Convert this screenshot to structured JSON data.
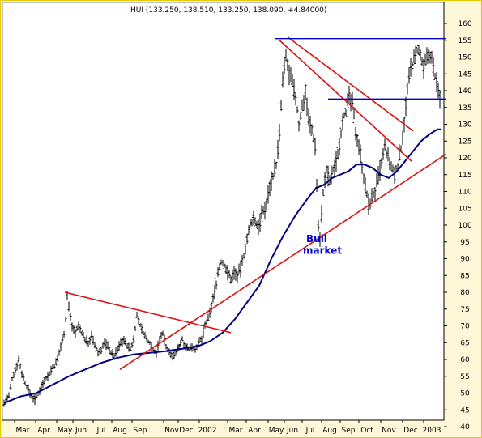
{
  "chart_data": {
    "type": "bar",
    "subtype": "ohlc-price",
    "title": "HUI (133.250, 138.510, 133.250, 138.090, +4.84000)",
    "ylim": [
      37,
      162
    ],
    "yticks": [
      40,
      45,
      50,
      55,
      60,
      65,
      70,
      75,
      80,
      85,
      90,
      95,
      100,
      105,
      110,
      115,
      120,
      125,
      130,
      135,
      140,
      145,
      150,
      155,
      160
    ],
    "x_labels": [
      "Mar",
      "Apr",
      "May",
      "Jun",
      "Jul",
      "Aug",
      "Sep",
      "Nov",
      "Dec",
      "2002",
      "Mar",
      "Apr",
      "May",
      "Jun",
      "Jul",
      "Aug",
      "Sep",
      "Oct",
      "Nov",
      "Dec",
      "2003"
    ],
    "grid": false,
    "colors": {
      "price": "#000000",
      "moving_average": "#000080",
      "trendline": "#dd1111",
      "horizontal_line": "#0000cc",
      "annotation": "#0000cc",
      "background": "#ffffff",
      "frame": "#e8c800"
    },
    "price_path": [
      [
        0,
        47
      ],
      [
        6,
        49
      ],
      [
        10,
        54
      ],
      [
        14,
        57
      ],
      [
        18,
        60
      ],
      [
        22,
        56
      ],
      [
        26,
        53
      ],
      [
        30,
        51
      ],
      [
        34,
        49
      ],
      [
        38,
        48
      ],
      [
        42,
        50
      ],
      [
        46,
        52
      ],
      [
        50,
        54
      ],
      [
        54,
        55
      ],
      [
        58,
        57
      ],
      [
        62,
        58
      ],
      [
        66,
        60
      ],
      [
        70,
        64
      ],
      [
        74,
        68
      ],
      [
        76,
        72
      ],
      [
        78,
        79
      ],
      [
        81,
        74
      ],
      [
        84,
        70
      ],
      [
        88,
        68
      ],
      [
        92,
        70
      ],
      [
        96,
        68
      ],
      [
        100,
        66
      ],
      [
        104,
        65
      ],
      [
        108,
        67
      ],
      [
        112,
        64
      ],
      [
        116,
        62
      ],
      [
        120,
        63
      ],
      [
        124,
        65
      ],
      [
        128,
        64
      ],
      [
        132,
        62
      ],
      [
        136,
        61
      ],
      [
        140,
        63
      ],
      [
        144,
        65
      ],
      [
        148,
        66
      ],
      [
        152,
        64
      ],
      [
        156,
        63
      ],
      [
        160,
        66
      ],
      [
        164,
        73
      ],
      [
        168,
        70
      ],
      [
        172,
        68
      ],
      [
        176,
        66
      ],
      [
        180,
        65
      ],
      [
        184,
        63
      ],
      [
        188,
        62
      ],
      [
        192,
        66
      ],
      [
        196,
        68
      ],
      [
        200,
        64
      ],
      [
        204,
        62
      ],
      [
        208,
        61
      ],
      [
        212,
        62
      ],
      [
        216,
        64
      ],
      [
        220,
        66
      ],
      [
        224,
        64
      ],
      [
        228,
        63
      ],
      [
        232,
        64
      ],
      [
        236,
        63
      ],
      [
        240,
        65
      ],
      [
        244,
        66
      ],
      [
        248,
        70
      ],
      [
        252,
        72
      ],
      [
        256,
        76
      ],
      [
        260,
        80
      ],
      [
        264,
        86
      ],
      [
        268,
        89
      ],
      [
        272,
        88
      ],
      [
        276,
        86
      ],
      [
        280,
        84
      ],
      [
        284,
        86
      ],
      [
        288,
        85
      ],
      [
        292,
        87
      ],
      [
        296,
        91
      ],
      [
        300,
        96
      ],
      [
        304,
        100
      ],
      [
        308,
        102
      ],
      [
        312,
        100
      ],
      [
        316,
        101
      ],
      [
        320,
        104
      ],
      [
        324,
        106
      ],
      [
        328,
        112
      ],
      [
        332,
        115
      ],
      [
        336,
        118
      ],
      [
        340,
        127
      ],
      [
        344,
        143
      ],
      [
        348,
        150
      ],
      [
        352,
        145
      ],
      [
        356,
        142
      ],
      [
        360,
        138
      ],
      [
        364,
        130
      ],
      [
        368,
        135
      ],
      [
        372,
        140
      ],
      [
        376,
        132
      ],
      [
        380,
        128
      ],
      [
        384,
        124
      ],
      [
        388,
        100
      ],
      [
        390,
        96
      ],
      [
        394,
        110
      ],
      [
        398,
        116
      ],
      [
        402,
        113
      ],
      [
        406,
        116
      ],
      [
        410,
        119
      ],
      [
        414,
        124
      ],
      [
        418,
        132
      ],
      [
        422,
        134
      ],
      [
        426,
        138
      ],
      [
        430,
        136
      ],
      [
        434,
        128
      ],
      [
        438,
        124
      ],
      [
        442,
        118
      ],
      [
        446,
        111
      ],
      [
        450,
        106
      ],
      [
        454,
        108
      ],
      [
        458,
        110
      ],
      [
        462,
        114
      ],
      [
        466,
        118
      ],
      [
        470,
        123
      ],
      [
        474,
        120
      ],
      [
        478,
        117
      ],
      [
        482,
        115
      ],
      [
        486,
        118
      ],
      [
        490,
        123
      ],
      [
        494,
        131
      ],
      [
        498,
        140
      ],
      [
        502,
        147
      ],
      [
        506,
        149
      ],
      [
        510,
        152
      ],
      [
        514,
        150
      ],
      [
        518,
        146
      ],
      [
        522,
        150
      ],
      [
        526,
        151
      ],
      [
        530,
        147
      ],
      [
        534,
        142
      ],
      [
        538,
        138
      ]
    ],
    "moving_average_path": [
      [
        0,
        47
      ],
      [
        20,
        49
      ],
      [
        40,
        50
      ],
      [
        60,
        52.5
      ],
      [
        80,
        55
      ],
      [
        100,
        57
      ],
      [
        120,
        59
      ],
      [
        140,
        60.5
      ],
      [
        160,
        61.5
      ],
      [
        180,
        62
      ],
      [
        200,
        62.5
      ],
      [
        220,
        63.2
      ],
      [
        240,
        64
      ],
      [
        255,
        65.5
      ],
      [
        270,
        68
      ],
      [
        285,
        72
      ],
      [
        300,
        77
      ],
      [
        315,
        82
      ],
      [
        330,
        90
      ],
      [
        345,
        97
      ],
      [
        360,
        103
      ],
      [
        375,
        108
      ],
      [
        385,
        111
      ],
      [
        395,
        112
      ],
      [
        405,
        114
      ],
      [
        415,
        115
      ],
      [
        425,
        116
      ],
      [
        435,
        118
      ],
      [
        445,
        118
      ],
      [
        455,
        117
      ],
      [
        465,
        115
      ],
      [
        475,
        114
      ],
      [
        485,
        116
      ],
      [
        495,
        119
      ],
      [
        505,
        122
      ],
      [
        515,
        125
      ],
      [
        525,
        127
      ],
      [
        535,
        128.5
      ],
      [
        540,
        128.5
      ]
    ],
    "trendlines": [
      {
        "from": [
          75,
          80
        ],
        "to": [
          280,
          68
        ]
      },
      {
        "from": [
          143,
          57
        ],
        "to": [
          545,
          121
        ]
      },
      {
        "from": [
          350,
          156
        ],
        "to": [
          505,
          128
        ]
      },
      {
        "from": [
          340,
          155
        ],
        "to": [
          503,
          119
        ]
      }
    ],
    "horizontal_lines": [
      {
        "value": 155.5,
        "x_from": 335,
        "x_to": 546
      },
      {
        "value": 137.5,
        "x_from": 400,
        "x_to": 546
      }
    ],
    "annotations": [
      {
        "text": "Bull",
        "value": 95,
        "xpos": 373
      },
      {
        "text": "market",
        "value": 91.5,
        "xpos": 369
      }
    ]
  }
}
